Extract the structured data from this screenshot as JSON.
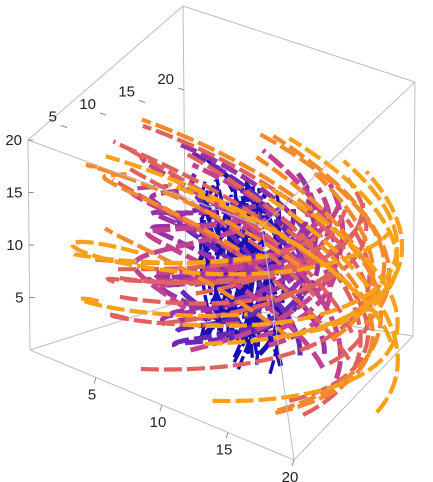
{
  "chart_data": {
    "type": "3d-stream-tubes",
    "title": "",
    "xlabel": "",
    "ylabel": "",
    "zlabel": "",
    "xlim": [
      0,
      20
    ],
    "ylim": [
      0,
      20
    ],
    "zlim": [
      0,
      20
    ],
    "box": true,
    "grid": false,
    "legend": "none",
    "axes": {
      "x": {
        "ticks": [
          "5",
          "10",
          "15",
          "20"
        ]
      },
      "y": {
        "ticks": [
          "5",
          "10",
          "15",
          "20"
        ]
      },
      "z": {
        "ticks": [
          "5",
          "10",
          "15",
          "20"
        ]
      }
    },
    "color_scale": [
      "#1a0fb0",
      "#6a28b6",
      "#9a33a8",
      "#c2428f",
      "#e0625f",
      "#f48a2c",
      "#f9a11a"
    ],
    "center_color": "#1a0fb0",
    "dash_style": "long-dash"
  }
}
